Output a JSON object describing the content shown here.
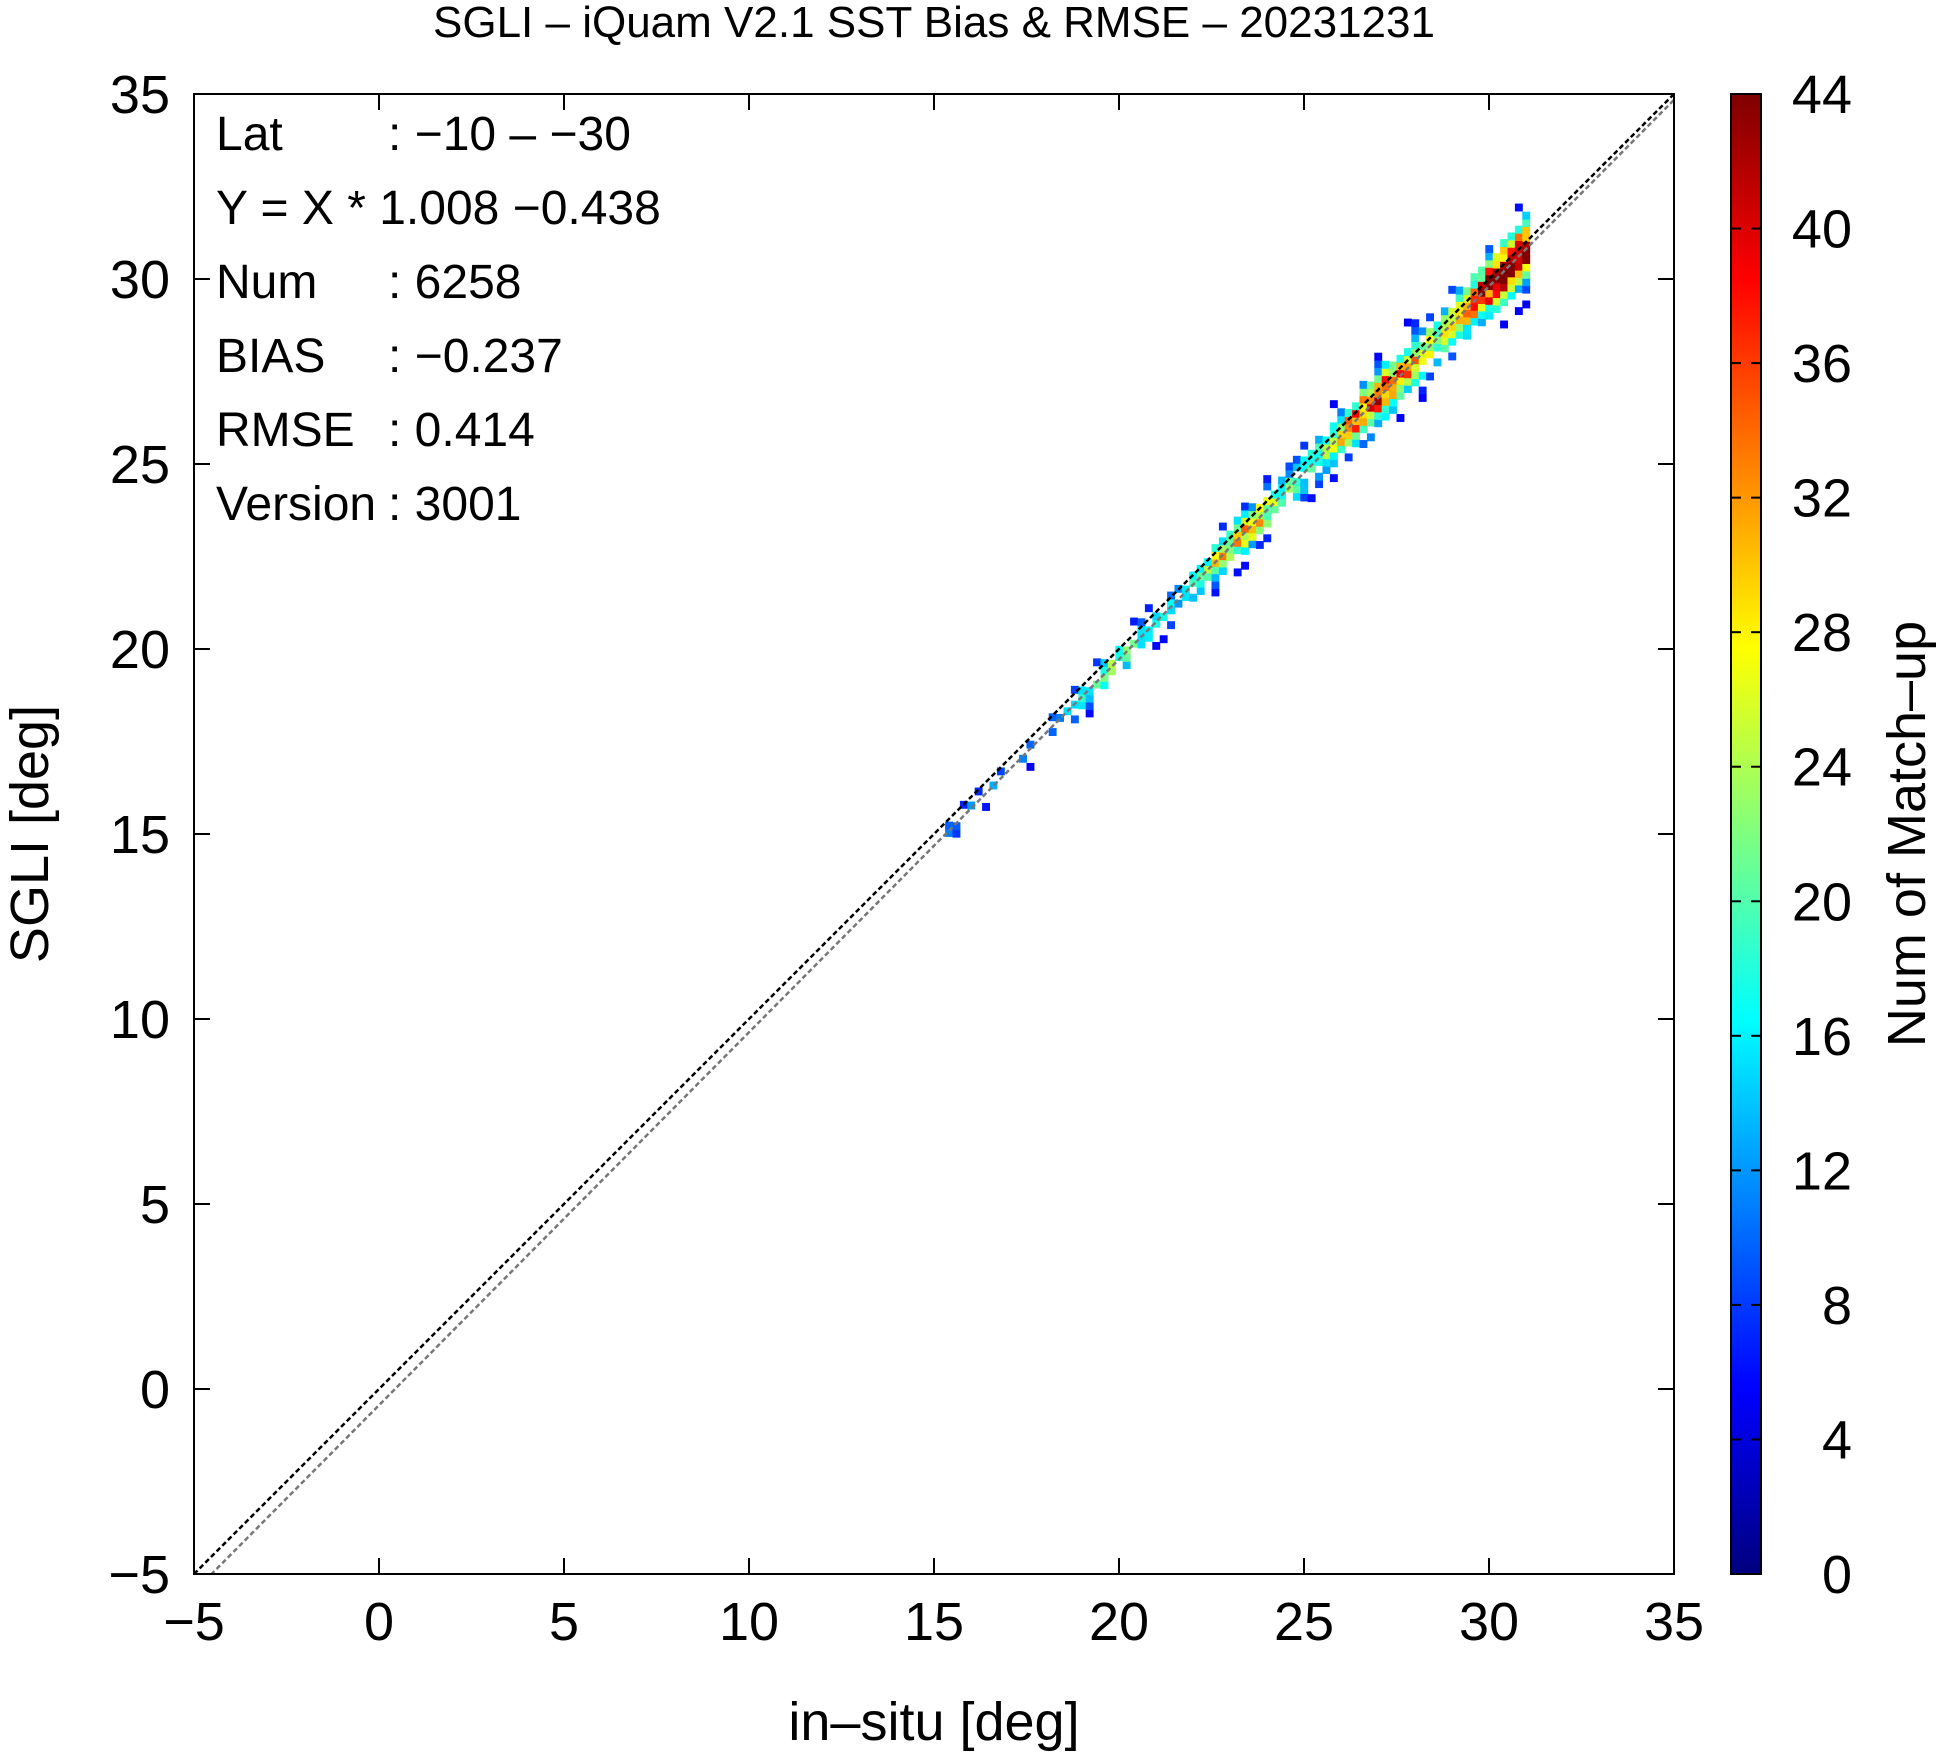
{
  "chart_data": {
    "type": "heatmap",
    "title": "SGLI – iQuam V2.1 SST Bias & RMSE  – 20231231",
    "xlabel": "in–situ [deg]",
    "ylabel": "SGLI [deg]",
    "xlim": [
      -5,
      35
    ],
    "ylim": [
      -5,
      35
    ],
    "xticks": [
      "−5",
      "0",
      "5",
      "10",
      "15",
      "20",
      "25",
      "30",
      "35"
    ],
    "yticks": [
      "−5",
      "0",
      "5",
      "10",
      "15",
      "20",
      "25",
      "30",
      "35"
    ],
    "colorbar": {
      "label": "Num of Match–up",
      "range": [
        0,
        44
      ],
      "ticks": [
        "0",
        "4",
        "8",
        "12",
        "16",
        "20",
        "24",
        "28",
        "32",
        "36",
        "40",
        "44"
      ],
      "colormap": "jet"
    },
    "stats": [
      {
        "key": "Lat",
        "value": ": −10 – −30"
      },
      {
        "key": "Y = X * 1.008 −0.438",
        "value": ""
      },
      {
        "key": "Num",
        "value": ": 6258"
      },
      {
        "key": "BIAS",
        "value": ": −0.237"
      },
      {
        "key": "RMSE",
        "value": ": 0.414"
      },
      {
        "key": "Version",
        "value": ": 3001"
      }
    ],
    "reference_lines": [
      {
        "name": "1:1",
        "slope": 1,
        "intercept": 0,
        "color": "#000000",
        "style": "dashed"
      },
      {
        "name": "regression",
        "slope": 1.008,
        "intercept": -0.438,
        "color": "#777777",
        "style": "dashed"
      }
    ],
    "density_cluster": {
      "x_range": [
        15.3,
        31.0
      ],
      "bin_size": 0.2,
      "peak_count": 44
    },
    "grid": false
  }
}
